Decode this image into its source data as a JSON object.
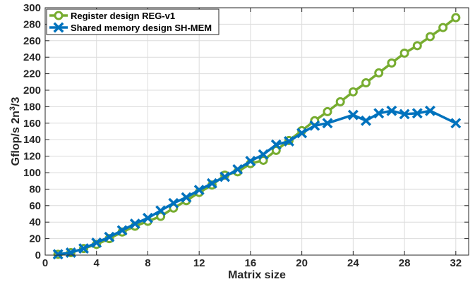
{
  "chart_data": {
    "type": "line",
    "xlabel": "Matrix size",
    "ylabel_main": "Gflop/s 2n",
    "ylabel_sup": "3",
    "ylabel_tail": "/3",
    "xlim": [
      0,
      33
    ],
    "ylim": [
      0,
      300
    ],
    "xticks": [
      0,
      4,
      8,
      12,
      16,
      20,
      24,
      28,
      32
    ],
    "yticks": [
      0,
      20,
      40,
      60,
      80,
      100,
      120,
      140,
      160,
      180,
      200,
      220,
      240,
      260,
      280,
      300
    ],
    "grid": true,
    "legend_position": "top-left",
    "series": [
      {
        "name": "Register design REG-v1",
        "color": "#77AC30",
        "marker": "circle",
        "x": [
          1,
          2,
          3,
          4,
          5,
          6,
          7,
          8,
          9,
          10,
          11,
          12,
          13,
          14,
          15,
          16,
          17,
          18,
          19,
          20,
          21,
          22,
          23,
          24,
          25,
          26,
          27,
          28,
          29,
          30,
          31,
          32
        ],
        "values": [
          1,
          3,
          8,
          13,
          20,
          28,
          35,
          41,
          47,
          57,
          66,
          76,
          85,
          97,
          101,
          111,
          115,
          127,
          139,
          151,
          163,
          174,
          186,
          198,
          209,
          221,
          233,
          245,
          254,
          265,
          276,
          288
        ]
      },
      {
        "name": "Shared memory design SH-MEM",
        "color": "#0072BD",
        "marker": "x",
        "x": [
          1,
          2,
          3,
          4,
          5,
          6,
          7,
          8,
          9,
          10,
          11,
          12,
          13,
          14,
          15,
          16,
          17,
          18,
          19,
          20,
          21,
          22,
          24,
          25,
          26,
          27,
          28,
          29,
          30,
          32
        ],
        "values": [
          1,
          3,
          8,
          15,
          22,
          30,
          38,
          45,
          54,
          63,
          70,
          79,
          87,
          95,
          104,
          114,
          122,
          134,
          138,
          148,
          157,
          160,
          170,
          163,
          172,
          175,
          171,
          172,
          175,
          160
        ]
      }
    ]
  }
}
